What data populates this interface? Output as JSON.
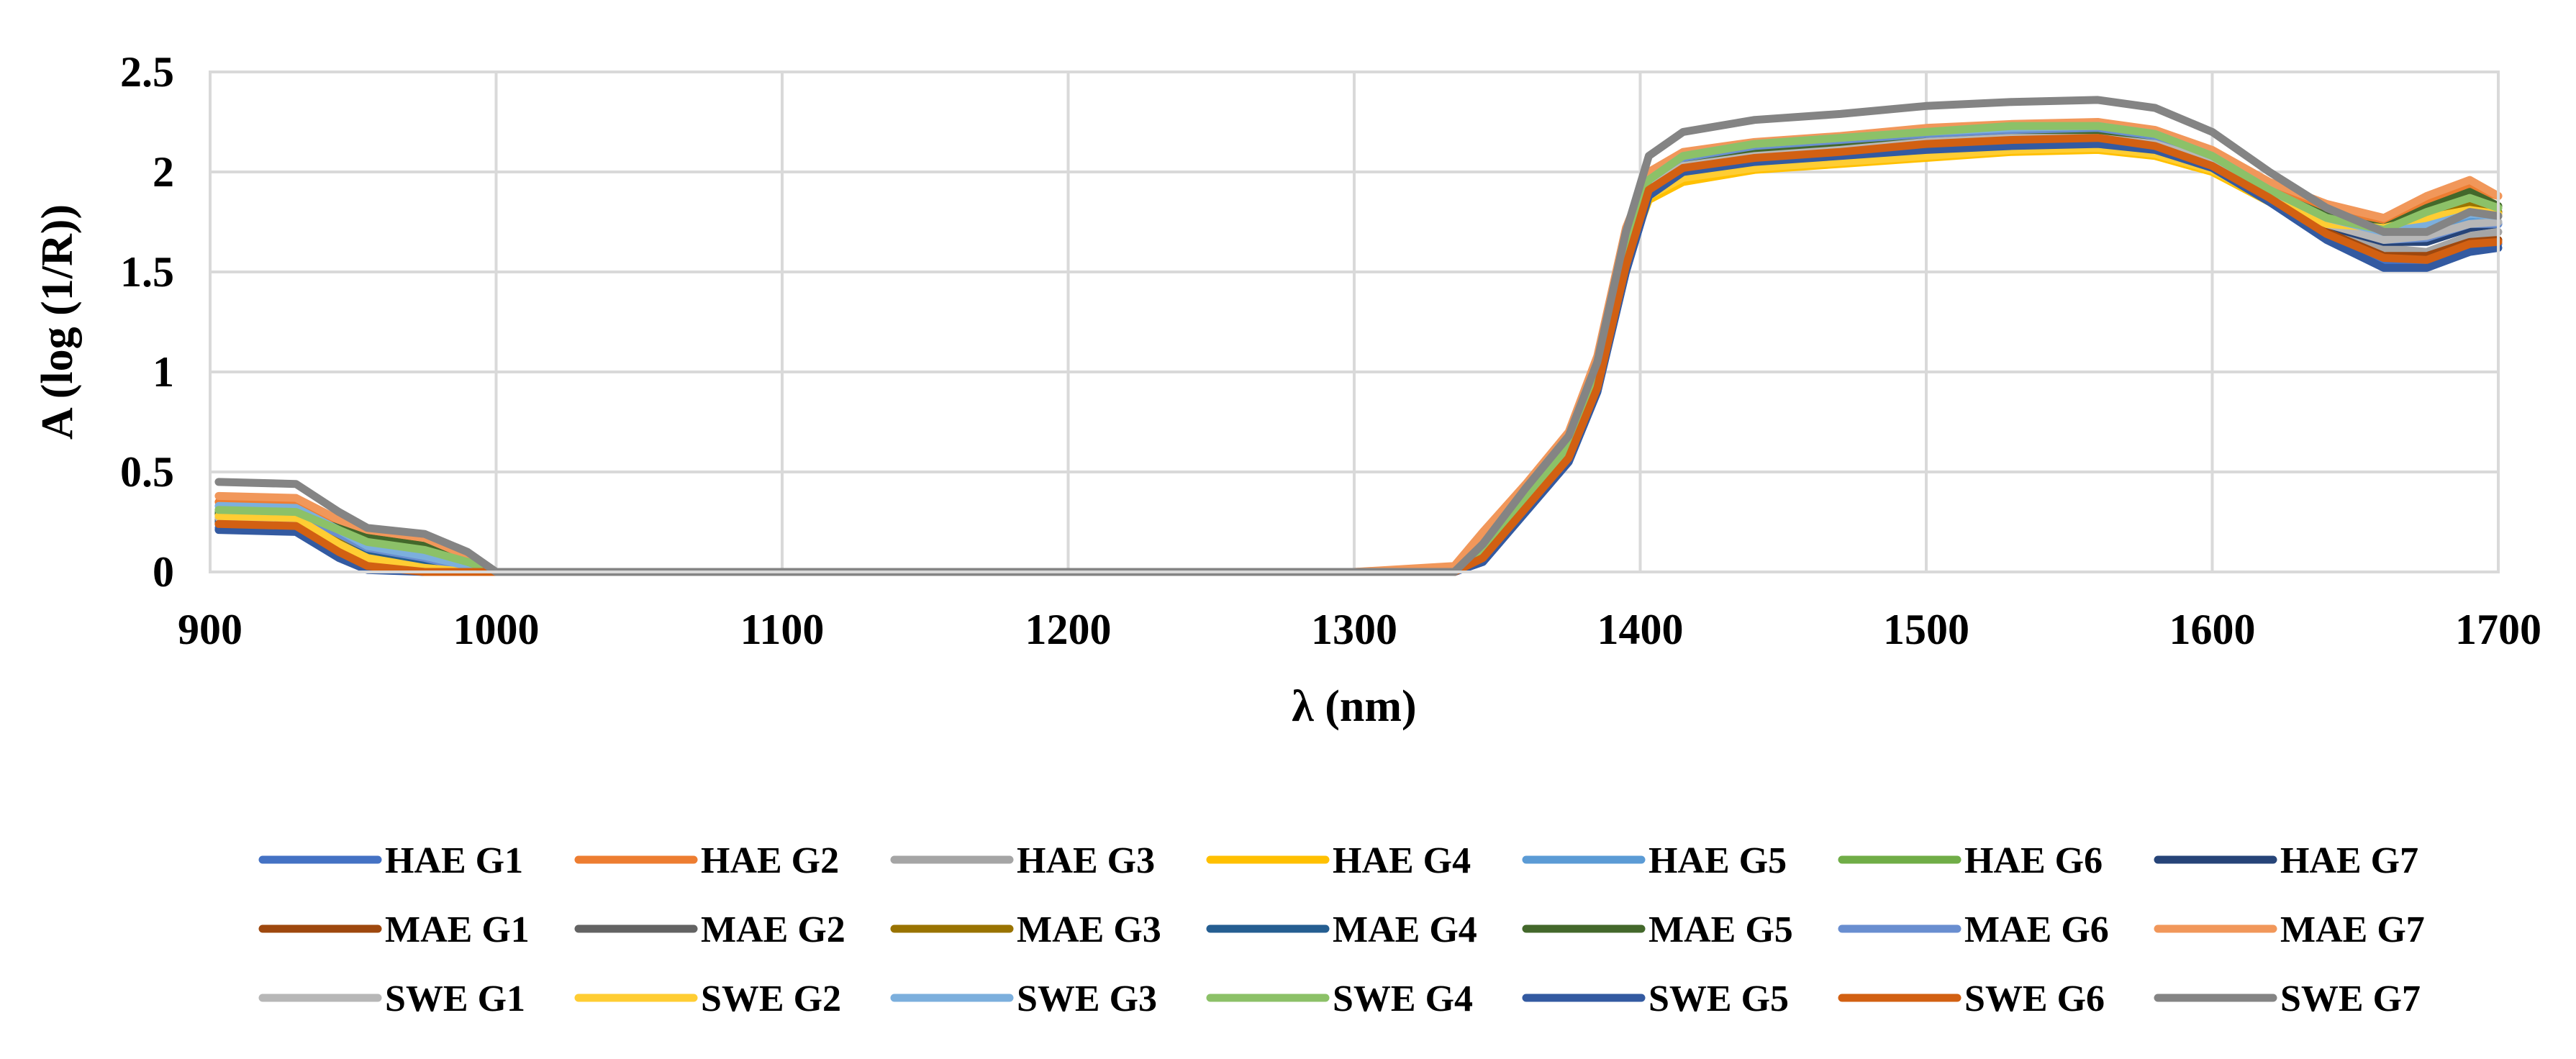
{
  "chart_data": {
    "type": "line",
    "title": "",
    "xlabel": "λ (nm)",
    "ylabel": "A (log (1/R))",
    "xlim": [
      900,
      1700
    ],
    "ylim": [
      0,
      2.5
    ],
    "x_ticks": [
      "900",
      "1000",
      "1100",
      "1200",
      "1300",
      "1400",
      "1500",
      "1600",
      "1700"
    ],
    "y_ticks": [
      "0",
      "0.5",
      "1",
      "1.5",
      "2",
      "2.5"
    ],
    "grid": true,
    "legend_position": "bottom",
    "x": [
      903,
      930,
      945,
      955,
      975,
      990,
      1000,
      1010,
      1100,
      1200,
      1300,
      1335,
      1345,
      1360,
      1375,
      1385,
      1395,
      1403,
      1415,
      1440,
      1470,
      1500,
      1530,
      1560,
      1580,
      1600,
      1620,
      1640,
      1660,
      1675,
      1690,
      1700
    ],
    "series": [
      {
        "name": "HAE G1",
        "color": "#4472c4",
        "values": [
          0.22,
          0.21,
          0.08,
          0.02,
          0.0,
          0.0,
          0.0,
          0.0,
          0.0,
          0.0,
          0.0,
          0.0,
          0.05,
          0.3,
          0.55,
          0.9,
          1.5,
          1.88,
          2.0,
          2.05,
          2.08,
          2.11,
          2.13,
          2.14,
          2.11,
          2.02,
          1.85,
          1.68,
          1.55,
          1.55,
          1.62,
          1.64
        ]
      },
      {
        "name": "HAE G2",
        "color": "#ed7d31",
        "values": [
          0.35,
          0.34,
          0.24,
          0.18,
          0.13,
          0.05,
          0.0,
          0.0,
          0.0,
          0.0,
          0.0,
          0.02,
          0.18,
          0.42,
          0.68,
          1.05,
          1.7,
          1.98,
          2.08,
          2.13,
          2.16,
          2.2,
          2.22,
          2.24,
          2.2,
          2.1,
          1.93,
          1.82,
          1.75,
          1.85,
          1.92,
          1.88
        ]
      },
      {
        "name": "HAE G3",
        "color": "#a5a5a5",
        "values": [
          0.25,
          0.24,
          0.1,
          0.03,
          0.0,
          0.0,
          0.0,
          0.0,
          0.0,
          0.0,
          0.0,
          0.0,
          0.08,
          0.33,
          0.58,
          0.95,
          1.55,
          1.9,
          2.02,
          2.07,
          2.1,
          2.14,
          2.16,
          2.16,
          2.13,
          2.04,
          1.88,
          1.72,
          1.62,
          1.6,
          1.68,
          1.7
        ]
      },
      {
        "name": "HAE G4",
        "color": "#ffc000",
        "values": [
          0.27,
          0.26,
          0.12,
          0.04,
          0.0,
          0.0,
          0.0,
          0.0,
          0.0,
          0.0,
          0.0,
          0.0,
          0.1,
          0.35,
          0.6,
          0.95,
          1.55,
          1.86,
          1.95,
          2.01,
          2.04,
          2.07,
          2.1,
          2.11,
          2.08,
          2.0,
          1.85,
          1.72,
          1.7,
          1.75,
          1.8,
          1.78
        ]
      },
      {
        "name": "HAE G5",
        "color": "#5b9bd5",
        "values": [
          0.3,
          0.29,
          0.18,
          0.1,
          0.06,
          0.02,
          0.0,
          0.0,
          0.0,
          0.0,
          0.0,
          0.0,
          0.12,
          0.38,
          0.63,
          1.0,
          1.62,
          1.95,
          2.06,
          2.12,
          2.15,
          2.18,
          2.2,
          2.21,
          2.17,
          2.06,
          1.9,
          1.75,
          1.68,
          1.7,
          1.76,
          1.75
        ]
      },
      {
        "name": "HAE G6",
        "color": "#70ad47",
        "values": [
          0.3,
          0.29,
          0.2,
          0.14,
          0.1,
          0.04,
          0.0,
          0.0,
          0.0,
          0.0,
          0.0,
          0.0,
          0.12,
          0.38,
          0.63,
          1.0,
          1.62,
          1.95,
          2.07,
          2.13,
          2.16,
          2.19,
          2.22,
          2.22,
          2.18,
          2.07,
          1.9,
          1.76,
          1.7,
          1.8,
          1.88,
          1.82
        ]
      },
      {
        "name": "HAE G7",
        "color": "#264478",
        "values": [
          0.24,
          0.23,
          0.1,
          0.03,
          0.0,
          0.0,
          0.0,
          0.0,
          0.0,
          0.0,
          0.0,
          0.0,
          0.07,
          0.32,
          0.57,
          0.92,
          1.52,
          1.9,
          2.01,
          2.06,
          2.09,
          2.12,
          2.14,
          2.15,
          2.12,
          2.03,
          1.87,
          1.73,
          1.65,
          1.65,
          1.72,
          1.74
        ]
      },
      {
        "name": "MAE G1",
        "color": "#9e480e",
        "values": [
          0.26,
          0.25,
          0.12,
          0.05,
          0.0,
          0.0,
          0.0,
          0.0,
          0.0,
          0.0,
          0.0,
          0.0,
          0.08,
          0.33,
          0.58,
          0.93,
          1.55,
          1.92,
          2.03,
          2.08,
          2.11,
          2.15,
          2.17,
          2.18,
          2.14,
          2.04,
          1.88,
          1.7,
          1.58,
          1.58,
          1.65,
          1.66
        ]
      },
      {
        "name": "MAE G2",
        "color": "#636363",
        "values": [
          0.28,
          0.27,
          0.18,
          0.12,
          0.08,
          0.03,
          0.0,
          0.0,
          0.0,
          0.0,
          0.0,
          0.0,
          0.1,
          0.35,
          0.6,
          0.96,
          1.58,
          1.93,
          2.04,
          2.1,
          2.13,
          2.16,
          2.18,
          2.19,
          2.16,
          2.06,
          1.9,
          1.78,
          1.72,
          1.76,
          1.82,
          1.8
        ]
      },
      {
        "name": "MAE G3",
        "color": "#997300",
        "values": [
          0.27,
          0.26,
          0.16,
          0.1,
          0.06,
          0.02,
          0.0,
          0.0,
          0.0,
          0.0,
          0.0,
          0.0,
          0.09,
          0.34,
          0.59,
          0.95,
          1.56,
          1.92,
          2.03,
          2.09,
          2.12,
          2.15,
          2.17,
          2.18,
          2.15,
          2.05,
          1.89,
          1.76,
          1.72,
          1.78,
          1.84,
          1.8
        ]
      },
      {
        "name": "MAE G4",
        "color": "#255e91",
        "values": [
          0.25,
          0.24,
          0.14,
          0.08,
          0.04,
          0.01,
          0.0,
          0.0,
          0.0,
          0.0,
          0.0,
          0.0,
          0.08,
          0.33,
          0.58,
          0.94,
          1.54,
          1.91,
          2.02,
          2.07,
          2.1,
          2.13,
          2.15,
          2.16,
          2.13,
          2.04,
          1.88,
          1.75,
          1.7,
          1.74,
          1.79,
          1.78
        ]
      },
      {
        "name": "MAE G5",
        "color": "#43682b",
        "values": [
          0.29,
          0.28,
          0.22,
          0.17,
          0.13,
          0.06,
          0.0,
          0.0,
          0.0,
          0.0,
          0.0,
          0.0,
          0.11,
          0.37,
          0.62,
          0.98,
          1.6,
          1.94,
          2.05,
          2.11,
          2.14,
          2.17,
          2.19,
          2.2,
          2.17,
          2.07,
          1.9,
          1.78,
          1.72,
          1.82,
          1.9,
          1.83
        ]
      },
      {
        "name": "MAE G6",
        "color": "#698ed0",
        "values": [
          0.31,
          0.3,
          0.19,
          0.12,
          0.07,
          0.02,
          0.0,
          0.0,
          0.0,
          0.0,
          0.0,
          0.0,
          0.12,
          0.38,
          0.63,
          1.0,
          1.62,
          1.96,
          2.07,
          2.13,
          2.16,
          2.19,
          2.21,
          2.22,
          2.18,
          2.07,
          1.9,
          1.75,
          1.66,
          1.67,
          1.74,
          1.74
        ]
      },
      {
        "name": "MAE G7",
        "color": "#f1975a",
        "values": [
          0.38,
          0.37,
          0.26,
          0.21,
          0.17,
          0.08,
          0.0,
          0.0,
          0.0,
          0.0,
          0.0,
          0.03,
          0.2,
          0.44,
          0.7,
          1.08,
          1.72,
          2.0,
          2.1,
          2.15,
          2.18,
          2.22,
          2.24,
          2.25,
          2.21,
          2.11,
          1.95,
          1.84,
          1.77,
          1.88,
          1.96,
          1.88
        ]
      },
      {
        "name": "SWE G1",
        "color": "#b7b7b7",
        "values": [
          0.27,
          0.26,
          0.13,
          0.06,
          0.01,
          0.0,
          0.0,
          0.0,
          0.0,
          0.0,
          0.0,
          0.0,
          0.09,
          0.34,
          0.59,
          0.95,
          1.56,
          1.92,
          2.03,
          2.08,
          2.11,
          2.15,
          2.17,
          2.17,
          2.14,
          2.05,
          1.88,
          1.74,
          1.66,
          1.68,
          1.74,
          1.75
        ]
      },
      {
        "name": "SWE G2",
        "color": "#ffcd33",
        "values": [
          0.28,
          0.27,
          0.14,
          0.07,
          0.02,
          0.0,
          0.0,
          0.0,
          0.0,
          0.0,
          0.0,
          0.0,
          0.09,
          0.34,
          0.59,
          0.95,
          1.55,
          1.88,
          1.97,
          2.02,
          2.05,
          2.08,
          2.11,
          2.12,
          2.09,
          2.01,
          1.86,
          1.74,
          1.72,
          1.77,
          1.81,
          1.79
        ]
      },
      {
        "name": "SWE G3",
        "color": "#7cafdd",
        "values": [
          0.33,
          0.32,
          0.21,
          0.13,
          0.08,
          0.03,
          0.0,
          0.0,
          0.0,
          0.0,
          0.0,
          0.0,
          0.13,
          0.39,
          0.64,
          1.01,
          1.64,
          1.96,
          2.08,
          2.14,
          2.17,
          2.2,
          2.22,
          2.23,
          2.19,
          2.08,
          1.91,
          1.77,
          1.7,
          1.73,
          1.79,
          1.78
        ]
      },
      {
        "name": "SWE G4",
        "color": "#8cc168",
        "values": [
          0.31,
          0.3,
          0.21,
          0.15,
          0.11,
          0.05,
          0.0,
          0.0,
          0.0,
          0.0,
          0.0,
          0.0,
          0.12,
          0.38,
          0.63,
          1.0,
          1.62,
          1.96,
          2.08,
          2.14,
          2.17,
          2.2,
          2.23,
          2.23,
          2.19,
          2.08,
          1.91,
          1.77,
          1.71,
          1.8,
          1.87,
          1.82
        ]
      },
      {
        "name": "SWE G5",
        "color": "#335aa1",
        "values": [
          0.21,
          0.2,
          0.07,
          0.01,
          0.0,
          0.0,
          0.0,
          0.0,
          0.0,
          0.0,
          0.0,
          0.0,
          0.05,
          0.3,
          0.55,
          0.9,
          1.5,
          1.88,
          2.0,
          2.05,
          2.08,
          2.11,
          2.13,
          2.14,
          2.11,
          2.02,
          1.85,
          1.66,
          1.52,
          1.52,
          1.6,
          1.62
        ]
      },
      {
        "name": "SWE G6",
        "color": "#d26012",
        "values": [
          0.24,
          0.23,
          0.1,
          0.03,
          0.0,
          0.0,
          0.0,
          0.0,
          0.0,
          0.0,
          0.0,
          0.0,
          0.07,
          0.32,
          0.57,
          0.92,
          1.53,
          1.91,
          2.02,
          2.07,
          2.1,
          2.14,
          2.16,
          2.17,
          2.13,
          2.03,
          1.87,
          1.69,
          1.57,
          1.56,
          1.64,
          1.65
        ]
      },
      {
        "name": "SWE G7",
        "color": "#848484",
        "values": [
          0.45,
          0.44,
          0.3,
          0.22,
          0.19,
          0.1,
          0.0,
          0.0,
          0.0,
          0.0,
          0.0,
          0.0,
          0.14,
          0.42,
          0.68,
          1.05,
          1.7,
          2.08,
          2.2,
          2.26,
          2.29,
          2.33,
          2.35,
          2.36,
          2.32,
          2.2,
          2.0,
          1.82,
          1.7,
          1.7,
          1.8,
          1.78
        ]
      }
    ]
  }
}
